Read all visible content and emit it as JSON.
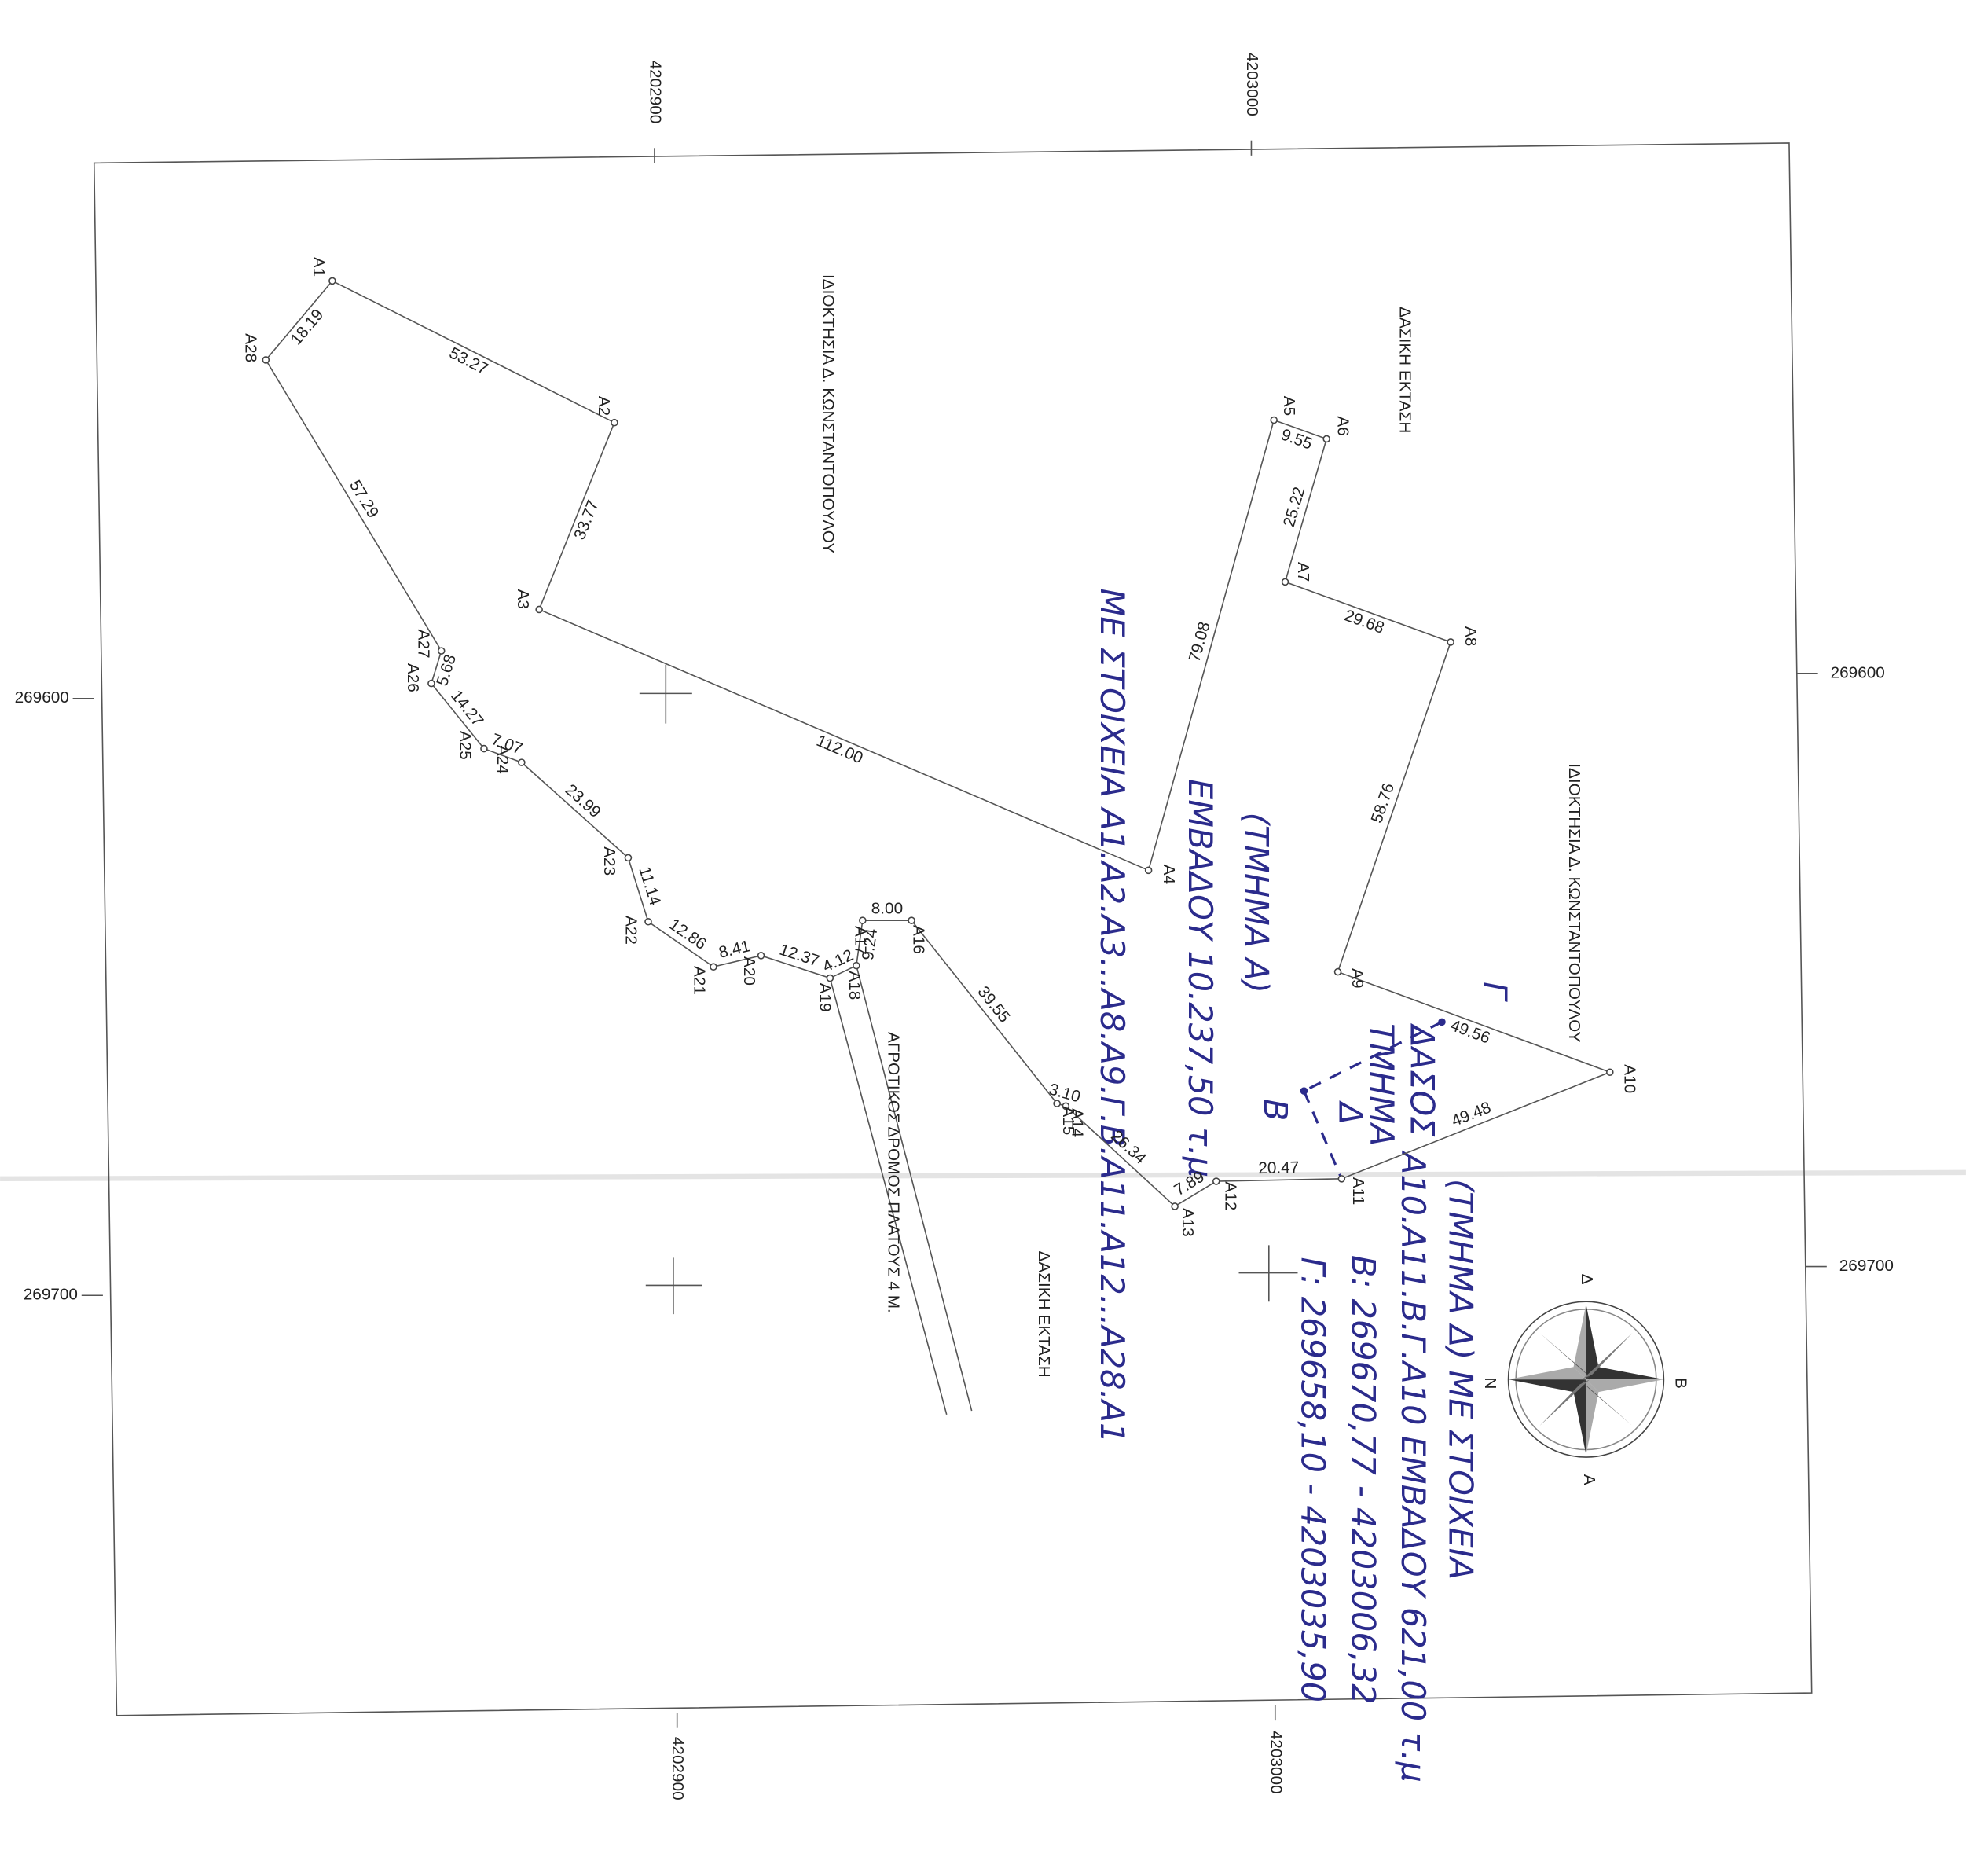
{
  "grid_labels": {
    "top": [
      "4202900",
      "4203000"
    ],
    "bottom": [
      "4202900",
      "4203000"
    ],
    "left": [
      "269600",
      "269700"
    ],
    "right": [
      "269600",
      "269700"
    ]
  },
  "points": [
    "A1",
    "A2",
    "A3",
    "A4",
    "A5",
    "A6",
    "A7",
    "A8",
    "A9",
    "A10",
    "A11",
    "A12",
    "A13",
    "A14",
    "A15",
    "A16",
    "A17",
    "A18",
    "A19",
    "A20",
    "A21",
    "A22",
    "A23",
    "A24",
    "A25",
    "A26",
    "A27",
    "A28"
  ],
  "distances": [
    "53.27",
    "33.77",
    "112.00",
    "79.08",
    "9.55",
    "25.22",
    "29.68",
    "58.76",
    "49.56",
    "49.48",
    "20.47",
    "7.89",
    "26.34",
    "3.10",
    "39.55",
    "8.00",
    "9.24",
    "4.12",
    "12.37",
    "8.41",
    "12.86",
    "11.14",
    "23.99",
    "7.07",
    "14.27",
    "5.68",
    "57.29",
    "18.19"
  ],
  "neighbours": {
    "owner_top": "ΙΔΙΟΚΤΗΣΙΑ Δ. ΚΩΝΣΤΑΝΤΟΠΟΥΛΟΥ",
    "owner_right": "ΙΔΙΟΚΤΗΣΙΑ Δ. ΚΩΝΣΤΑΝΤΟΠΟΥΛΟΥ",
    "forest_top": "ΔΑΣΙΚΗ ΕΚΤΑΣΗ",
    "forest_bottom": "ΔΑΣΙΚΗ ΕΚΤΑΣΗ",
    "road": "ΑΓΡΟΤΙΚΟΣ ΔΡΟΜΟΣ ΠΛΑΤΟΥΣ 4 Μ."
  },
  "compass": {
    "top": "Δ",
    "right": "Β",
    "bottom": "Α",
    "left": "Ν"
  },
  "notes": {
    "part_a_title": "(ΤΜΗΜΑ Α)",
    "part_a_area": "ΕΜΒΑΔΟΥ 10.237,50 τ.μ",
    "part_a_points": "ΜΕ ΣΤΟΙΧΕΙΑ Α1.Α2.Α3...Α8.Α9.Γ.Β.Α11.Α12...Α28.Α1",
    "part_d_title": "(ΤΜΗΜΑ Δ) ΜΕ ΣΤΟΙΧΕΙΑ",
    "part_d_area": "Α10.Α11.Β.Γ.Α10 ΕΜΒΑΔΟΥ 621,00 τ.μ",
    "coord_b": "Β: 269670,77 - 4203006,32",
    "coord_g": "Γ: 269658,10 - 4203035,90",
    "forest": "ΔΑΣΟΣ",
    "part": "ΤΜΗΜΑ",
    "part_letter": "Δ",
    "point_g": "Γ",
    "point_b": "Β"
  }
}
